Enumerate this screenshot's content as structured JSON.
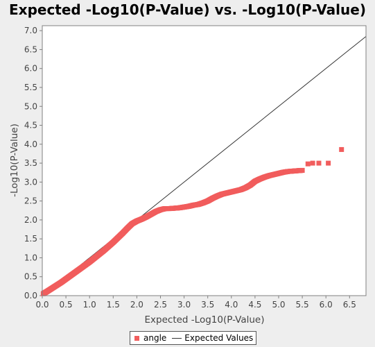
{
  "chart_data": {
    "type": "scatter",
    "title": "Expected -Log10(P-Value) vs. -Log10(P-Value)",
    "xlabel": "Expected -Log10(P-Value)",
    "ylabel": "-Log10(P-Value)",
    "xlim": [
      0,
      6.85
    ],
    "ylim": [
      0,
      7.2
    ],
    "x_ticks": [
      "0.0",
      "0.5",
      "1.0",
      "1.5",
      "2.0",
      "2.5",
      "3.0",
      "3.5",
      "4.0",
      "4.5",
      "5.0",
      "5.5",
      "6.0",
      "6.5"
    ],
    "y_ticks": [
      "0.0",
      "0.5",
      "1.0",
      "1.5",
      "2.0",
      "2.5",
      "3.0",
      "3.5",
      "4.0",
      "4.5",
      "5.0",
      "5.5",
      "6.0",
      "6.5",
      "7.0"
    ],
    "grid": false,
    "legend_position": "bottom",
    "series": [
      {
        "name": "angle",
        "kind": "points",
        "color": "#f15d5d",
        "x": [
          0.02,
          0.1,
          0.2,
          0.3,
          0.4,
          0.5,
          0.6,
          0.7,
          0.8,
          0.9,
          1.0,
          1.1,
          1.2,
          1.3,
          1.4,
          1.5,
          1.6,
          1.7,
          1.8,
          1.9,
          2.0,
          2.1,
          2.2,
          2.3,
          2.4,
          2.5,
          2.6,
          2.7,
          2.8,
          2.9,
          3.0,
          3.1,
          3.2,
          3.3,
          3.4,
          3.5,
          3.6,
          3.7,
          3.8,
          3.9,
          4.0,
          4.1,
          4.2,
          4.3,
          4.4,
          4.5,
          4.6,
          4.7,
          4.8,
          4.9,
          5.0,
          5.1,
          5.2,
          5.3,
          5.4,
          5.5,
          5.62,
          5.72,
          5.85,
          6.05,
          6.33
        ],
        "y": [
          0.05,
          0.11,
          0.19,
          0.27,
          0.35,
          0.44,
          0.53,
          0.62,
          0.71,
          0.8,
          0.89,
          0.99,
          1.09,
          1.19,
          1.3,
          1.41,
          1.53,
          1.65,
          1.78,
          1.9,
          1.97,
          2.02,
          2.08,
          2.15,
          2.22,
          2.27,
          2.3,
          2.3,
          2.31,
          2.32,
          2.34,
          2.36,
          2.39,
          2.41,
          2.45,
          2.5,
          2.57,
          2.63,
          2.68,
          2.71,
          2.74,
          2.77,
          2.8,
          2.85,
          2.92,
          3.02,
          3.08,
          3.13,
          3.17,
          3.2,
          3.23,
          3.26,
          3.28,
          3.29,
          3.3,
          3.31,
          3.48,
          3.5,
          3.5,
          3.5,
          3.86
        ]
      },
      {
        "name": "Expected Values",
        "kind": "line",
        "color": "#333333",
        "x": [
          0,
          6.85
        ],
        "y": [
          0,
          6.85
        ]
      }
    ]
  }
}
